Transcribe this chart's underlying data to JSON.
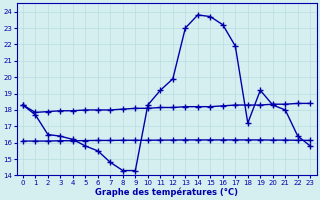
{
  "hours": [
    0,
    1,
    2,
    3,
    4,
    5,
    6,
    7,
    8,
    9,
    10,
    11,
    12,
    13,
    14,
    15,
    16,
    17,
    18,
    19,
    20,
    21,
    22,
    23
  ],
  "temp_main": [
    18.3,
    17.7,
    16.5,
    16.4,
    16.2,
    15.8,
    15.5,
    14.8,
    14.3,
    14.3,
    18.3,
    19.2,
    19.9,
    23.0,
    23.8,
    23.7,
    23.2,
    21.9,
    17.2,
    19.2,
    18.3,
    18.0,
    16.4,
    15.8
  ],
  "temp_line1": [
    18.3,
    17.85,
    17.9,
    17.95,
    17.95,
    18.0,
    18.0,
    18.0,
    18.05,
    18.1,
    18.1,
    18.15,
    18.15,
    18.2,
    18.2,
    18.2,
    18.25,
    18.3,
    18.3,
    18.3,
    18.35,
    18.35,
    18.4,
    18.4
  ],
  "temp_line2": [
    16.1,
    16.1,
    16.1,
    16.12,
    16.12,
    16.13,
    16.14,
    16.14,
    16.15,
    16.15,
    16.15,
    16.16,
    16.16,
    16.17,
    16.17,
    16.17,
    16.17,
    16.17,
    16.17,
    16.17,
    16.16,
    16.16,
    16.15,
    16.14
  ],
  "color": "#0000aa",
  "bg_color": "#d5eef0",
  "grid_color": "#b8dde0",
  "xlabel": "Graphe des températures (°C)",
  "xlim": [
    -0.5,
    23.5
  ],
  "ylim": [
    14,
    24.5
  ],
  "yticks": [
    14,
    15,
    16,
    17,
    18,
    19,
    20,
    21,
    22,
    23,
    24
  ],
  "xticks": [
    0,
    1,
    2,
    3,
    4,
    5,
    6,
    7,
    8,
    9,
    10,
    11,
    12,
    13,
    14,
    15,
    16,
    17,
    18,
    19,
    20,
    21,
    22,
    23
  ],
  "marker": "+",
  "marker_size": 4.0,
  "linewidth": 1.0
}
